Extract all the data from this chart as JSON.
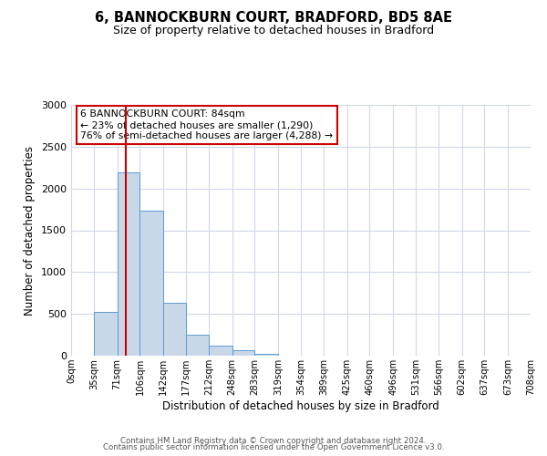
{
  "title": "6, BANNOCKBURN COURT, BRADFORD, BD5 8AE",
  "subtitle": "Size of property relative to detached houses in Bradford",
  "xlabel": "Distribution of detached houses by size in Bradford",
  "ylabel": "Number of detached properties",
  "bar_color": "#c8d8e8",
  "bar_edge_color": "#5b9bd5",
  "grid_color": "#d0d8e8",
  "background_color": "#ffffff",
  "bin_labels": [
    "0sqm",
    "35sqm",
    "71sqm",
    "106sqm",
    "142sqm",
    "177sqm",
    "212sqm",
    "248sqm",
    "283sqm",
    "319sqm",
    "354sqm",
    "389sqm",
    "425sqm",
    "460sqm",
    "496sqm",
    "531sqm",
    "566sqm",
    "602sqm",
    "637sqm",
    "673sqm",
    "708sqm"
  ],
  "bar_heights": [
    0,
    520,
    2190,
    1740,
    630,
    255,
    120,
    65,
    25,
    5,
    0,
    0,
    0,
    0,
    0,
    0,
    0,
    0,
    0,
    0
  ],
  "ylim": [
    0,
    3000
  ],
  "yticks": [
    0,
    500,
    1000,
    1500,
    2000,
    2500,
    3000
  ],
  "red_line_x": 84,
  "annotation_title": "6 BANNOCKBURN COURT: 84sqm",
  "annotation_line1": "← 23% of detached houses are smaller (1,290)",
  "annotation_line2": "76% of semi-detached houses are larger (4,288) →",
  "footer_line1": "Contains HM Land Registry data © Crown copyright and database right 2024.",
  "footer_line2": "Contains public sector information licensed under the Open Government Licence v3.0.",
  "red_color": "#cc0000",
  "annotation_box_color": "#cc0000",
  "bin_edges": [
    0,
    35,
    71,
    106,
    142,
    177,
    212,
    248,
    283,
    319,
    354,
    389,
    425,
    460,
    496,
    531,
    566,
    602,
    637,
    673,
    708
  ]
}
